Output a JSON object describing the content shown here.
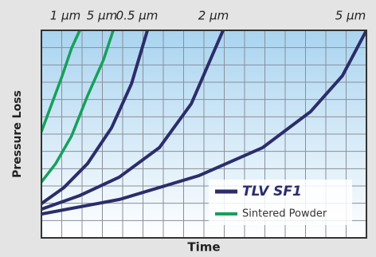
{
  "chart_data": {
    "type": "line",
    "x_label": "Time",
    "y_label": "Pressure Loss",
    "xlim": [
      0,
      100
    ],
    "ylim": [
      0,
      100
    ],
    "legend": [
      {
        "name": "TLV SF1",
        "color": "#2b2d6b"
      },
      {
        "name": "Sintered Powder",
        "color": "#16a05a"
      }
    ],
    "series": [
      {
        "label": "1 µm",
        "color": "#16a05a",
        "x": [
          0,
          3.2,
          6.4,
          9.3,
          11.8
        ],
        "values": [
          51.2,
          64.6,
          78.1,
          91.5,
          100
        ]
      },
      {
        "label": "5 µm",
        "color": "#16a05a",
        "x": [
          0,
          4.4,
          9.3,
          14.2,
          19.1,
          22.1
        ],
        "values": [
          26.9,
          35.8,
          49.2,
          68.5,
          85.8,
          100
        ]
      },
      {
        "label": "0.5 µm",
        "color": "#2b2d6b",
        "x": [
          0,
          6.9,
          14.2,
          21.6,
          27.7,
          32.6
        ],
        "values": [
          16.5,
          24.2,
          35.8,
          53.1,
          74.2,
          100
        ]
      },
      {
        "label": "2 µm",
        "color": "#2b2d6b",
        "x": [
          0,
          11.8,
          23.9,
          36.3,
          46.1,
          55.9
        ],
        "values": [
          13.8,
          20.4,
          29.2,
          43.5,
          64.6,
          100
        ]
      },
      {
        "label": "5 µm",
        "color": "#2b2d6b",
        "x": [
          0,
          24,
          48.5,
          68.1,
          82.8,
          92.6,
          100
        ],
        "values": [
          11.5,
          18.5,
          30,
          43.5,
          60.8,
          78.1,
          100
        ]
      }
    ]
  }
}
